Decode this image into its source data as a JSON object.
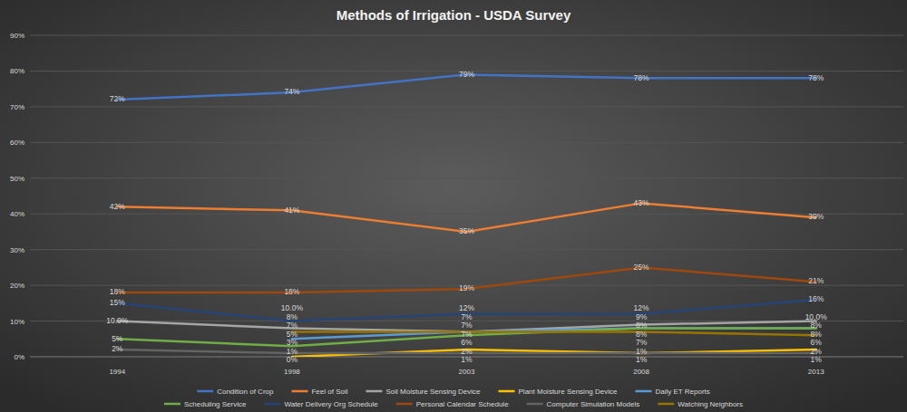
{
  "chart_data": {
    "type": "line",
    "title": "Methods of Irrigation - USDA Survey",
    "categories": [
      "1994",
      "1998",
      "2003",
      "2008",
      "2013"
    ],
    "ylim": [
      0,
      90
    ],
    "yticks": [
      {
        "value": 0,
        "label": "0%"
      },
      {
        "value": 10,
        "label": "10%"
      },
      {
        "value": 20,
        "label": "20%"
      },
      {
        "value": 30,
        "label": "30%"
      },
      {
        "value": 40,
        "label": "40%"
      },
      {
        "value": 50,
        "label": "50%"
      },
      {
        "value": 60,
        "label": "60%"
      },
      {
        "value": 70,
        "label": "70%"
      },
      {
        "value": 80,
        "label": "80%"
      },
      {
        "value": 90,
        "label": "90%"
      }
    ],
    "grid": true,
    "legend": "bottom",
    "data_labels": true,
    "series": [
      {
        "name": "Condition of Crop",
        "color": "#4472c4",
        "values": [
          72,
          74,
          79,
          78,
          78
        ],
        "value_labels": [
          "72%",
          "74%",
          "79%",
          "78%",
          "78%"
        ]
      },
      {
        "name": "Feel of Soil",
        "color": "#ed7d31",
        "values": [
          42,
          41,
          35,
          43,
          39
        ],
        "value_labels": [
          "42%",
          "41%",
          "35%",
          "43%",
          "39%"
        ]
      },
      {
        "name": "Soil Moisture Sensing Device",
        "color": "#a5a5a5",
        "values": [
          10,
          8,
          7,
          9,
          10
        ],
        "value_labels": [
          "10.0%",
          "8%",
          "7%",
          "9%",
          "10.0%"
        ]
      },
      {
        "name": "Plant Moisture Sensing Device",
        "color": "#ffc000",
        "values": [
          null,
          0,
          2,
          1,
          2
        ],
        "value_labels": [
          null,
          "0%",
          "2%",
          "1%",
          "2%"
        ]
      },
      {
        "name": "Daily ET Reports",
        "color": "#5b9bd5",
        "values": [
          null,
          5,
          7,
          8,
          8
        ],
        "value_labels": [
          null,
          "5%",
          "7%",
          "8%",
          "8%"
        ]
      },
      {
        "name": "Scheduling Service",
        "color": "#70ad47",
        "values": [
          5,
          3,
          6,
          8,
          8
        ],
        "value_labels": [
          "5%",
          "3%",
          "6%",
          "8%",
          "8%"
        ]
      },
      {
        "name": "Water Delivery Org Schedule",
        "color": "#264478",
        "values": [
          15,
          10,
          12,
          12,
          16
        ],
        "value_labels": [
          "15%",
          "10.0%",
          "12%",
          "12%",
          "16%"
        ]
      },
      {
        "name": "Personal Calendar Schedule",
        "color": "#9e480e",
        "values": [
          18,
          18,
          19,
          25,
          21
        ],
        "value_labels": [
          "18%",
          "18%",
          "19%",
          "25%",
          "21%"
        ]
      },
      {
        "name": "Computer Simulation Models",
        "color": "#636363",
        "values": [
          2,
          1,
          1,
          1,
          1
        ],
        "value_labels": [
          "2%",
          "1%",
          "1%",
          "1%",
          "1%"
        ]
      },
      {
        "name": "Watching Neighbors",
        "color": "#997300",
        "values": [
          null,
          7,
          7,
          7,
          6
        ],
        "value_labels": [
          null,
          "7%",
          "7%",
          "7%",
          "6%"
        ]
      }
    ]
  }
}
